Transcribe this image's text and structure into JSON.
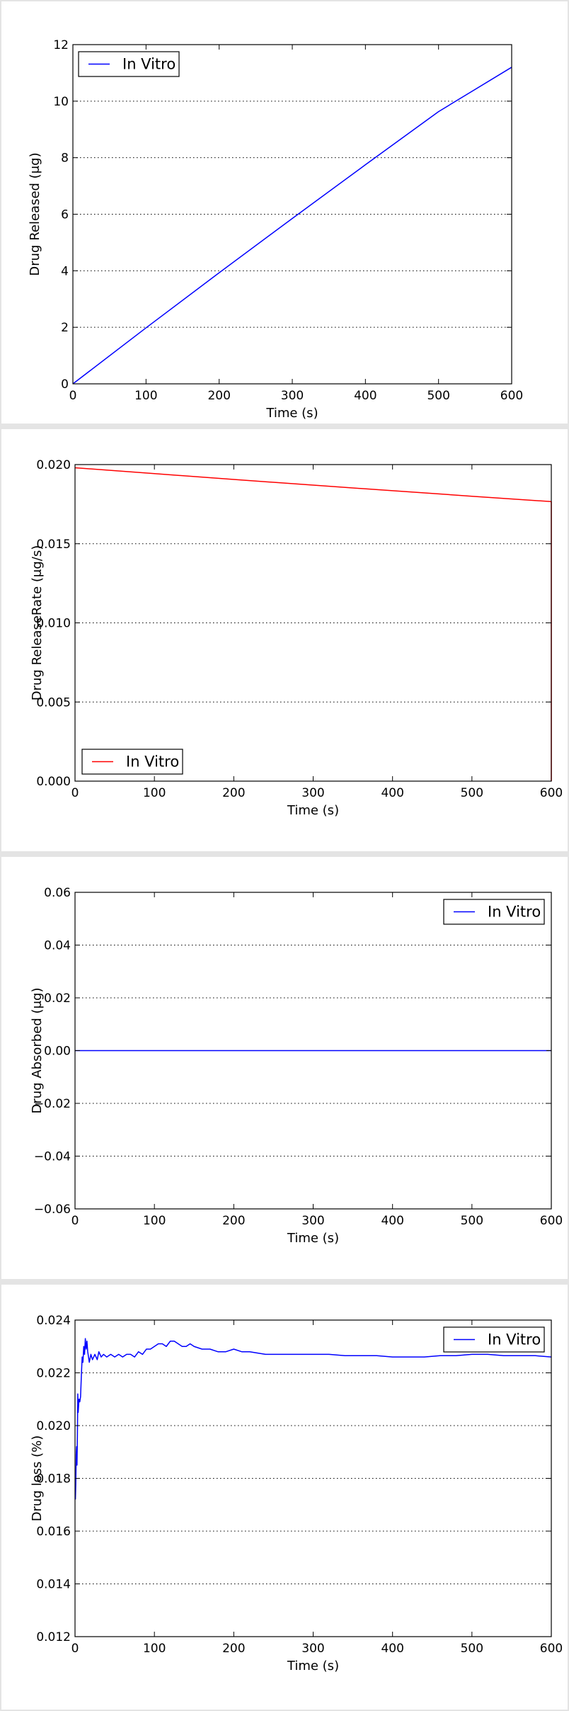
{
  "chart_data": [
    {
      "type": "line",
      "xlabel": "Time (s)",
      "ylabel": "Drug Released (μg)",
      "xlim": [
        0,
        600
      ],
      "ylim": [
        0,
        12
      ],
      "xticks": [
        0,
        100,
        200,
        300,
        400,
        500,
        600
      ],
      "xtick_labels": [
        "0",
        "100",
        "200",
        "300",
        "400",
        "500",
        "600"
      ],
      "yticks": [
        0,
        2,
        4,
        6,
        8,
        10,
        12
      ],
      "ytick_labels": [
        "0",
        "2",
        "4",
        "6",
        "8",
        "10",
        "12"
      ],
      "grid": "horizontal-dotted",
      "legend_position": "upper-left",
      "series": [
        {
          "name": "In Vitro",
          "color": "#0000ff",
          "x": [
            0,
            100,
            200,
            300,
            400,
            500,
            600
          ],
          "y": [
            0,
            1.98,
            3.93,
            5.85,
            7.75,
            9.63,
            11.2
          ]
        }
      ]
    },
    {
      "type": "line",
      "xlabel": "Time (s)",
      "ylabel": "Drug ReleaseRate (μg/s)",
      "xlim": [
        0,
        600
      ],
      "ylim": [
        0,
        0.02
      ],
      "xticks": [
        0,
        100,
        200,
        300,
        400,
        500,
        600
      ],
      "xtick_labels": [
        "0",
        "100",
        "200",
        "300",
        "400",
        "500",
        "600"
      ],
      "yticks": [
        0,
        0.005,
        0.01,
        0.015,
        0.02
      ],
      "ytick_labels": [
        "0.000",
        "0.005",
        "0.010",
        "0.015",
        "0.020"
      ],
      "grid": "horizontal-dotted",
      "legend_position": "lower-left",
      "series": [
        {
          "name": "In Vitro",
          "color": "#ff0000",
          "x": [
            0,
            100,
            200,
            300,
            400,
            500,
            600,
            600
          ],
          "y": [
            0.0198,
            0.01943,
            0.01906,
            0.0187,
            0.01835,
            0.018,
            0.01766,
            0
          ]
        }
      ]
    },
    {
      "type": "line",
      "xlabel": "Time (s)",
      "ylabel": "Drug Absorbed (μg)",
      "xlim": [
        0,
        600
      ],
      "ylim": [
        -0.06,
        0.06
      ],
      "xticks": [
        0,
        100,
        200,
        300,
        400,
        500,
        600
      ],
      "xtick_labels": [
        "0",
        "100",
        "200",
        "300",
        "400",
        "500",
        "600"
      ],
      "yticks": [
        -0.06,
        -0.04,
        -0.02,
        0,
        0.02,
        0.04,
        0.06
      ],
      "ytick_labels": [
        "−0.06",
        "−0.04",
        "−0.02",
        "0.00",
        "0.02",
        "0.04",
        "0.06"
      ],
      "grid": "horizontal-dotted",
      "legend_position": "upper-right",
      "series": [
        {
          "name": "In Vitro",
          "color": "#0000ff",
          "x": [
            0,
            600
          ],
          "y": [
            0,
            0
          ]
        }
      ]
    },
    {
      "type": "line",
      "xlabel": "Time (s)",
      "ylabel": "Drug loss (%)",
      "xlim": [
        0,
        600
      ],
      "ylim": [
        0.012,
        0.024
      ],
      "xticks": [
        0,
        100,
        200,
        300,
        400,
        500,
        600
      ],
      "xtick_labels": [
        "0",
        "100",
        "200",
        "300",
        "400",
        "500",
        "600"
      ],
      "yticks": [
        0.012,
        0.014,
        0.016,
        0.018,
        0.02,
        0.022,
        0.024
      ],
      "ytick_labels": [
        "0.012",
        "0.014",
        "0.016",
        "0.018",
        "0.020",
        "0.022",
        "0.024"
      ],
      "grid": "horizontal-dotted",
      "legend_position": "upper-right",
      "series": [
        {
          "name": "In Vitro",
          "color": "#0000ff",
          "x": [
            0.5,
            1,
            1.5,
            2,
            2.5,
            3,
            3.5,
            4,
            5,
            6,
            7,
            8,
            9,
            10,
            11,
            12,
            13,
            14,
            15,
            16,
            17,
            18,
            20,
            22,
            25,
            28,
            30,
            33,
            36,
            40,
            45,
            50,
            55,
            60,
            65,
            70,
            75,
            80,
            85,
            90,
            95,
            100,
            105,
            110,
            115,
            120,
            125,
            130,
            135,
            140,
            145,
            150,
            160,
            170,
            180,
            190,
            200,
            210,
            220,
            240,
            260,
            280,
            300,
            320,
            340,
            360,
            380,
            400,
            420,
            440,
            460,
            480,
            500,
            520,
            540,
            560,
            580,
            600
          ],
          "y": [
            0.0172,
            0.0178,
            0.0189,
            0.0192,
            0.0185,
            0.0196,
            0.0212,
            0.0205,
            0.021,
            0.0209,
            0.0211,
            0.0219,
            0.0226,
            0.0224,
            0.023,
            0.0227,
            0.0233,
            0.0229,
            0.0232,
            0.0228,
            0.0226,
            0.0224,
            0.0227,
            0.0225,
            0.0227,
            0.0225,
            0.0228,
            0.0226,
            0.0227,
            0.0226,
            0.0227,
            0.0226,
            0.0227,
            0.0226,
            0.0227,
            0.0227,
            0.0226,
            0.0228,
            0.0227,
            0.0229,
            0.0229,
            0.023,
            0.0231,
            0.0231,
            0.023,
            0.0232,
            0.0232,
            0.0231,
            0.023,
            0.023,
            0.0231,
            0.023,
            0.0229,
            0.0229,
            0.0228,
            0.0228,
            0.0229,
            0.0228,
            0.0228,
            0.0227,
            0.0227,
            0.0227,
            0.0227,
            0.0227,
            0.02265,
            0.02265,
            0.02265,
            0.0226,
            0.0226,
            0.0226,
            0.02265,
            0.02265,
            0.0227,
            0.0227,
            0.02265,
            0.02265,
            0.02265,
            0.0226
          ]
        }
      ]
    }
  ]
}
